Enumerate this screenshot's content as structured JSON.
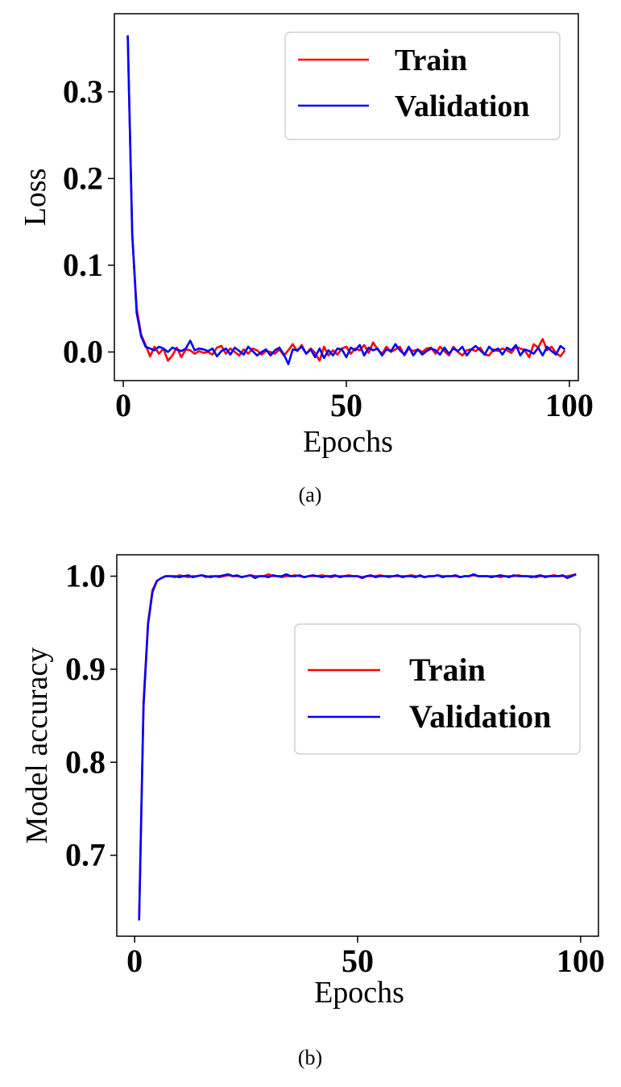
{
  "chart_data": [
    {
      "type": "line",
      "panel": "(a)",
      "xlabel": "Epochs",
      "ylabel": "Loss",
      "xlim": [
        -2,
        102
      ],
      "ylim": [
        -0.033,
        0.39
      ],
      "xticks": [
        0,
        50,
        100
      ],
      "yticks": [
        0.0,
        0.1,
        0.2,
        0.3
      ],
      "ytick_labels": [
        "0.0",
        "0.1",
        "0.2",
        "0.3"
      ],
      "grid": false,
      "legend_position": "upper right",
      "legend": [
        "Train",
        "Validation"
      ],
      "x": [
        1,
        2,
        3,
        4,
        5,
        6,
        7,
        8,
        9,
        10,
        11,
        12,
        13,
        14,
        15,
        16,
        17,
        18,
        19,
        20,
        21,
        22,
        23,
        24,
        25,
        26,
        27,
        28,
        29,
        30,
        31,
        32,
        33,
        34,
        35,
        36,
        37,
        38,
        39,
        40,
        41,
        42,
        43,
        44,
        45,
        46,
        47,
        48,
        49,
        50,
        51,
        52,
        53,
        54,
        55,
        56,
        57,
        58,
        59,
        60,
        61,
        62,
        63,
        64,
        65,
        66,
        67,
        68,
        69,
        70,
        71,
        72,
        73,
        74,
        75,
        76,
        77,
        78,
        79,
        80,
        81,
        82,
        83,
        84,
        85,
        86,
        87,
        88,
        89,
        90,
        91,
        92,
        93,
        94,
        95,
        96,
        97,
        98,
        99
      ],
      "series": [
        {
          "name": "Train",
          "color": "#ff0000",
          "values": [
            0.365,
            0.135,
            0.05,
            0.02,
            0.008,
            -0.005,
            0.006,
            -0.002,
            0.004,
            -0.01,
            -0.004,
            0.005,
            -0.006,
            0.003,
            0.002,
            -0.002,
            0.001,
            -0.001,
            0.0,
            -0.003,
            0.005,
            0.007,
            -0.002,
            0.004,
            0.0,
            -0.004,
            0.003,
            -0.002,
            0.004,
            0.002,
            -0.003,
            0.001,
            0.0,
            -0.002,
            0.003,
            -0.004,
            0.002,
            0.009,
            0.001,
            0.008,
            -0.002,
            0.004,
            -0.001,
            -0.01,
            0.006,
            -0.004,
            0.002,
            -0.003,
            0.004,
            0.006,
            -0.002,
            0.004,
            0.002,
            0.008,
            -0.001,
            0.011,
            0.003,
            -0.002,
            0.006,
            0.0,
            0.003,
            0.006,
            -0.004,
            0.004,
            0.001,
            0.003,
            0.0,
            0.004,
            0.005,
            -0.002,
            0.006,
            0.001,
            -0.004,
            0.006,
            0.0,
            -0.004,
            0.002,
            0.003,
            0.001,
            0.005,
            -0.003,
            -0.004,
            0.003,
            0.001,
            0.004,
            0.002,
            -0.001,
            0.006,
            0.004,
            0.002,
            -0.006,
            0.009,
            0.005,
            0.015,
            0.002,
            0.006,
            -0.001,
            -0.005,
            0.002
          ]
        },
        {
          "name": "Validation",
          "color": "#0000ff",
          "values": [
            0.365,
            0.135,
            0.045,
            0.018,
            0.006,
            0.004,
            0.002,
            0.006,
            0.004,
            0.0,
            0.005,
            0.003,
            0.001,
            0.004,
            0.013,
            0.002,
            0.004,
            0.003,
            0.001,
            0.004,
            -0.005,
            0.001,
            0.004,
            -0.003,
            0.005,
            0.001,
            -0.003,
            0.006,
            0.001,
            -0.004,
            0.0,
            0.003,
            -0.004,
            0.002,
            0.005,
            -0.003,
            -0.014,
            0.003,
            0.002,
            0.006,
            -0.002,
            0.003,
            -0.006,
            0.004,
            -0.007,
            0.002,
            -0.004,
            0.004,
            0.003,
            -0.006,
            0.005,
            0.002,
            0.008,
            -0.004,
            0.005,
            0.002,
            0.004,
            -0.004,
            0.003,
            0.001,
            0.009,
            0.002,
            -0.003,
            0.006,
            -0.004,
            0.003,
            -0.003,
            0.001,
            0.004,
            0.002,
            -0.003,
            0.005,
            -0.002,
            0.004,
            0.001,
            0.006,
            -0.004,
            0.003,
            0.007,
            0.002,
            -0.003,
            0.006,
            0.001,
            0.004,
            -0.003,
            0.005,
            0.002,
            0.008,
            -0.004,
            0.003,
            0.001,
            -0.002,
            0.005,
            -0.004,
            0.006,
            0.001,
            -0.003,
            0.007,
            0.003
          ]
        }
      ]
    },
    {
      "type": "line",
      "panel": "(b)",
      "xlabel": "Epochs",
      "ylabel": "Model accuracy",
      "xlim": [
        -4,
        104
      ],
      "ylim": [
        0.613,
        1.023
      ],
      "xticks": [
        0,
        50,
        100
      ],
      "yticks": [
        0.7,
        0.8,
        0.9,
        1.0
      ],
      "ytick_labels": [
        "0.7",
        "0.8",
        "0.9",
        "1.0"
      ],
      "grid": false,
      "legend_position": "lower right",
      "legend": [
        "Train",
        "Validation"
      ],
      "x": [
        1,
        2,
        3,
        4,
        5,
        6,
        7,
        8,
        9,
        10,
        11,
        12,
        13,
        14,
        15,
        16,
        17,
        18,
        19,
        20,
        21,
        22,
        23,
        24,
        25,
        26,
        27,
        28,
        29,
        30,
        31,
        32,
        33,
        34,
        35,
        36,
        37,
        38,
        39,
        40,
        41,
        42,
        43,
        44,
        45,
        46,
        47,
        48,
        49,
        50,
        51,
        52,
        53,
        54,
        55,
        56,
        57,
        58,
        59,
        60,
        61,
        62,
        63,
        64,
        65,
        66,
        67,
        68,
        69,
        70,
        71,
        72,
        73,
        74,
        75,
        76,
        77,
        78,
        79,
        80,
        81,
        82,
        83,
        84,
        85,
        86,
        87,
        88,
        89,
        90,
        91,
        92,
        93,
        94,
        95,
        96,
        97,
        98,
        99
      ],
      "series": [
        {
          "name": "Train",
          "color": "#ff0000",
          "values": [
            0.63,
            0.865,
            0.95,
            0.985,
            0.995,
            0.998,
            1.0,
            1.0,
            0.999,
            1.001,
            1.0,
            0.999,
            1.0,
            1.0,
            1.001,
            0.999,
            1.0,
            1.0,
            0.999,
            1.0,
            1.001,
            1.0,
            1.0,
            0.999,
            1.0,
            1.001,
            1.0,
            1.0,
            1.0,
            1.002,
            1.0,
            1.0,
            0.999,
            1.0,
            1.0,
            1.001,
            1.0,
            0.999,
            1.0,
            1.0,
            1.0,
            1.001,
            1.0,
            0.999,
            1.0,
            1.0,
            1.0,
            1.001,
            1.0,
            1.0,
            0.999,
            1.0,
            1.0,
            1.0,
            1.001,
            1.0,
            0.999,
            1.0,
            1.0,
            1.0,
            1.0,
            1.001,
            1.0,
            1.0,
            0.999,
            1.0,
            1.0,
            1.001,
            1.0,
            1.0,
            1.0,
            1.0,
            0.999,
            1.0,
            1.0,
            1.001,
            1.0,
            1.0,
            1.0,
            1.0,
            1.0,
            0.999,
            1.0,
            1.0,
            1.0,
            1.001,
            1.0,
            1.0,
            1.0,
            0.999,
            1.0,
            1.0,
            1.0,
            1.001,
            1.0,
            1.0,
            1.0,
            1.001,
            1.002
          ]
        },
        {
          "name": "Validation",
          "color": "#0000ff",
          "values": [
            0.63,
            0.86,
            0.948,
            0.983,
            0.995,
            0.998,
            1.0,
            1.0,
            1.0,
            0.999,
            1.0,
            1.001,
            0.999,
            1.0,
            1.001,
            1.0,
            0.999,
            1.0,
            1.0,
            1.001,
            1.002,
            1.0,
            1.001,
            0.999,
            1.0,
            1.001,
            0.998,
            1.0,
            1.0,
            0.999,
            1.001,
            1.0,
            1.0,
            1.002,
            1.0,
            1.0,
            1.001,
            0.999,
            1.0,
            1.001,
            1.0,
            0.999,
            1.0,
            1.0,
            1.001,
            0.999,
            1.0,
            1.0,
            1.0,
            1.0,
            0.998,
            1.0,
            1.001,
            0.999,
            1.0,
            1.0,
            1.0,
            1.0,
            1.001,
            0.999,
            1.0,
            1.0,
            0.999,
            1.001,
            0.999,
            1.0,
            1.0,
            1.001,
            0.999,
            1.0,
            1.0,
            1.001,
            0.999,
            1.0,
            1.0,
            1.002,
            1.0,
            1.0,
            1.0,
            0.999,
            1.0,
            1.001,
            1.0,
            0.999,
            1.001,
            1.0,
            1.0,
            1.0,
            0.999,
            1.0,
            1.001,
            0.999,
            1.0,
            1.0,
            1.0,
            1.001,
            0.998,
            1.0,
            1.002
          ]
        }
      ]
    }
  ]
}
